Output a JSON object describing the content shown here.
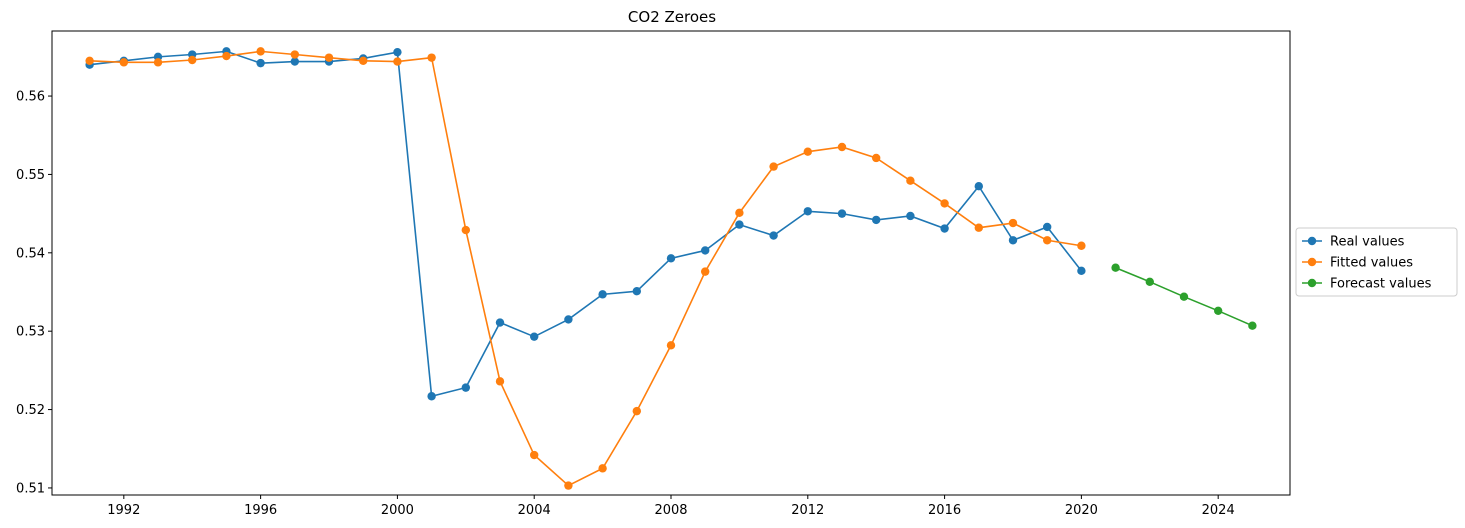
{
  "chart_data": {
    "type": "line",
    "title": "CO2 Zeroes",
    "xlabel": "",
    "ylabel": "",
    "xlim": [
      1989.9,
      2026.1
    ],
    "ylim": [
      0.5091,
      0.5683
    ],
    "xticks": [
      1992,
      1996,
      2000,
      2004,
      2008,
      2012,
      2016,
      2020,
      2024
    ],
    "xtick_labels": [
      "1992",
      "1996",
      "2000",
      "2004",
      "2008",
      "2012",
      "2016",
      "2020",
      "2024"
    ],
    "yticks": [
      0.51,
      0.52,
      0.53,
      0.54,
      0.55,
      0.56
    ],
    "ytick_labels": [
      "0.51",
      "0.52",
      "0.53",
      "0.54",
      "0.55",
      "0.56"
    ],
    "grid": false,
    "legend_position": "right-outside",
    "series": [
      {
        "name": "Real values",
        "color": "#1f77b4",
        "x": [
          1991,
          1992,
          1993,
          1994,
          1995,
          1996,
          1997,
          1998,
          1999,
          2000,
          2001,
          2002,
          2003,
          2004,
          2005,
          2006,
          2007,
          2008,
          2009,
          2010,
          2011,
          2012,
          2013,
          2014,
          2015,
          2016,
          2017,
          2018,
          2019,
          2020
        ],
        "values": [
          0.564,
          0.5645,
          0.565,
          0.5653,
          0.5657,
          0.5642,
          0.5644,
          0.5644,
          0.5648,
          0.5656,
          0.5217,
          0.5228,
          0.5311,
          0.5293,
          0.5315,
          0.5347,
          0.5351,
          0.5393,
          0.5403,
          0.5436,
          0.5422,
          0.5453,
          0.545,
          0.5442,
          0.5447,
          0.5431,
          0.5485,
          0.5416,
          0.5433,
          0.5377
        ]
      },
      {
        "name": "Fitted values",
        "color": "#ff7f0e",
        "x": [
          1991,
          1992,
          1993,
          1994,
          1995,
          1996,
          1997,
          1998,
          1999,
          2000,
          2001,
          2002,
          2003,
          2004,
          2005,
          2006,
          2007,
          2008,
          2009,
          2010,
          2011,
          2012,
          2013,
          2014,
          2015,
          2016,
          2017,
          2018,
          2019,
          2020
        ],
        "values": [
          0.5645,
          0.5643,
          0.5643,
          0.5646,
          0.5651,
          0.5657,
          0.5653,
          0.5649,
          0.5645,
          0.5644,
          0.5649,
          0.5429,
          0.5236,
          0.5142,
          0.5103,
          0.5125,
          0.5198,
          0.5282,
          0.5376,
          0.5451,
          0.551,
          0.5529,
          0.5535,
          0.5521,
          0.5492,
          0.5463,
          0.5432,
          0.5438,
          0.5416,
          0.5409
        ]
      },
      {
        "name": "Forecast values",
        "color": "#2ca02c",
        "x": [
          2021,
          2022,
          2023,
          2024,
          2025
        ],
        "values": [
          0.5381,
          0.5363,
          0.5344,
          0.5326,
          0.5307
        ]
      }
    ]
  }
}
